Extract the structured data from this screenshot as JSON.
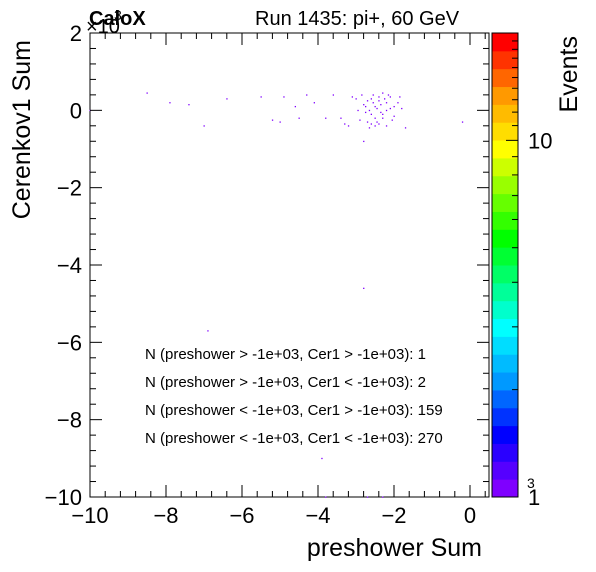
{
  "header": {
    "tag": "CaloX",
    "title": "Run 1435: pi+, 60 GeV"
  },
  "chart_data": {
    "type": "heatmap",
    "title": "Run 1435: pi+, 60 GeV",
    "xlabel": "preshower Sum",
    "ylabel": "Cerenkov1 Sum",
    "zlabel": "Events",
    "xlim": [
      -10000,
      500
    ],
    "ylim": [
      -10000,
      2000
    ],
    "x_ticks": [
      -10000,
      -8000,
      -6000,
      -4000,
      -2000,
      0
    ],
    "x_tick_labels": [
      "−10",
      "−8",
      "−6",
      "−4",
      "−2",
      "0"
    ],
    "y_ticks": [
      -10000,
      -8000,
      -6000,
      -4000,
      -2000,
      0,
      2000
    ],
    "y_tick_labels": [
      "−10",
      "−8",
      "−6",
      "−4",
      "−2",
      "0",
      "2"
    ],
    "y_multiplier": "×10",
    "y_multiplier_exp": "3",
    "x_multiplier_exp": "3",
    "zscale": "log",
    "zlim": [
      1,
      20
    ],
    "z_tick_labels": [
      "1",
      "10"
    ],
    "z_ticks": [
      1,
      10
    ],
    "palette": [
      "#7f00ff",
      "#5500ff",
      "#2a00ff",
      "#0000ff",
      "#0033ff",
      "#0066ff",
      "#0099ff",
      "#00bbff",
      "#00ddff",
      "#00ffff",
      "#00ffcc",
      "#00ff99",
      "#00ff66",
      "#00ff33",
      "#00ff00",
      "#33ff00",
      "#66ff00",
      "#99ff00",
      "#ccff00",
      "#ffff00",
      "#ffdd00",
      "#ffbb00",
      "#ff9900",
      "#ff6600",
      "#ff3300",
      "#ff0000"
    ],
    "points": [
      [
        -2500,
        100
      ],
      [
        -2400,
        350
      ],
      [
        -2200,
        200
      ],
      [
        -2600,
        -100
      ],
      [
        -2300,
        -200
      ],
      [
        -2700,
        250
      ],
      [
        -2100,
        50
      ],
      [
        -2450,
        -300
      ],
      [
        -2550,
        400
      ],
      [
        -2350,
        -50
      ],
      [
        -2250,
        300
      ],
      [
        -2650,
        0
      ],
      [
        -2800,
        150
      ],
      [
        -2000,
        -150
      ],
      [
        -2150,
        400
      ],
      [
        -2500,
        -400
      ],
      [
        -2900,
        -250
      ],
      [
        -2750,
        -50
      ],
      [
        -1900,
        200
      ],
      [
        -2600,
        300
      ],
      [
        -2400,
        -350
      ],
      [
        -2200,
        -400
      ],
      [
        -1800,
        50
      ],
      [
        -2350,
        150
      ],
      [
        -2700,
        -300
      ],
      [
        -3000,
        300
      ],
      [
        -2050,
        -250
      ],
      [
        -2550,
        200
      ],
      [
        -2450,
        50
      ],
      [
        -2300,
        450
      ],
      [
        -3200,
        -400
      ],
      [
        -1700,
        -450
      ],
      [
        -2850,
        400
      ],
      [
        -2650,
        -450
      ],
      [
        -2100,
        350
      ],
      [
        -2950,
        0
      ],
      [
        -2000,
        100
      ],
      [
        -2500,
        -200
      ],
      [
        -2200,
        0
      ],
      [
        -2750,
        100
      ],
      [
        -3400,
        -200
      ],
      [
        -2600,
        -350
      ],
      [
        -1850,
        350
      ],
      [
        -2400,
        250
      ],
      [
        -2300,
        -100
      ],
      [
        -8500,
        450
      ],
      [
        -7900,
        200
      ],
      [
        -7400,
        150
      ],
      [
        -7000,
        -400
      ],
      [
        -6400,
        300
      ],
      [
        -5500,
        350
      ],
      [
        -5200,
        -250
      ],
      [
        -4900,
        350
      ],
      [
        -4600,
        100
      ],
      [
        -4300,
        400
      ],
      [
        -4100,
        200
      ],
      [
        -3800,
        -200
      ],
      [
        -3600,
        400
      ],
      [
        -3300,
        -350
      ],
      [
        -3100,
        350
      ],
      [
        -5000,
        -300
      ],
      [
        -4500,
        -200
      ],
      [
        -2800,
        -800
      ],
      [
        -200,
        -300
      ],
      [
        -10000,
        0
      ],
      [
        -2800,
        -4600
      ],
      [
        -6900,
        -5700
      ],
      [
        -3900,
        -9000
      ],
      [
        -3800,
        -10000
      ],
      [
        -2700,
        -10000
      ],
      [
        -2300,
        -10000
      ]
    ],
    "annotations": [
      "N (preshower > -1e+03, Cer1 > -1e+03): 1",
      "N (preshower > -1e+03, Cer1 < -1e+03): 2",
      "N (preshower < -1e+03, Cer1 > -1e+03): 159",
      "N (preshower < -1e+03, Cer1 < -1e+03): 270"
    ]
  }
}
